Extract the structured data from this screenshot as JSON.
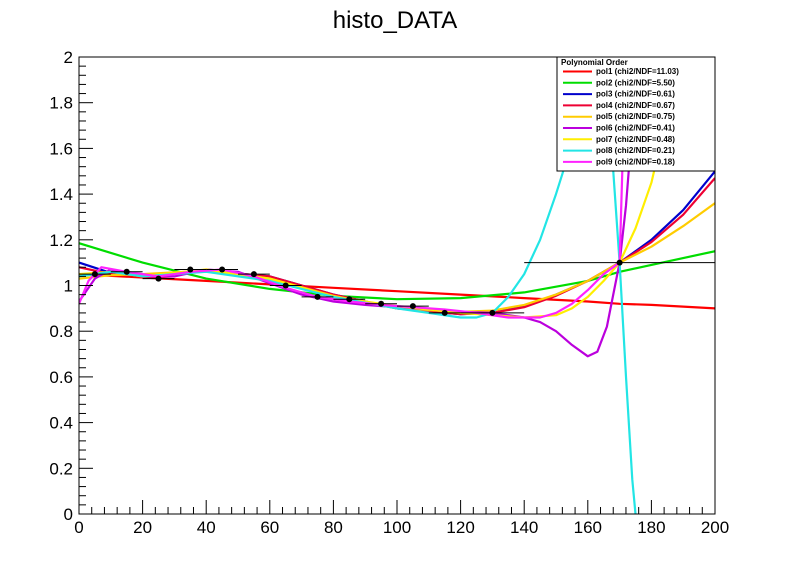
{
  "chart_data": {
    "type": "line",
    "title": "histo_DATA",
    "xlabel": "",
    "ylabel": "",
    "xlim": [
      0,
      200
    ],
    "ylim": [
      0,
      2
    ],
    "grid": false,
    "legend_placement": "top-right",
    "x_ticks": [
      "0",
      "20",
      "40",
      "60",
      "80",
      "100",
      "120",
      "140",
      "160",
      "180",
      "200"
    ],
    "y_ticks": [
      "0",
      "0.2",
      "0.4",
      "0.6",
      "0.8",
      "1",
      "1.2",
      "1.4",
      "1.6",
      "1.8",
      "2"
    ],
    "legend_title": "Polynomial Order",
    "data_points": [
      {
        "x": 5,
        "y": 1.05,
        "xlo": 0,
        "xhi": 10
      },
      {
        "x": 15,
        "y": 1.06,
        "xlo": 10,
        "xhi": 20
      },
      {
        "x": 25,
        "y": 1.03,
        "xlo": 20,
        "xhi": 30
      },
      {
        "x": 35,
        "y": 1.07,
        "xlo": 30,
        "xhi": 40
      },
      {
        "x": 45,
        "y": 1.07,
        "xlo": 40,
        "xhi": 50
      },
      {
        "x": 55,
        "y": 1.05,
        "xlo": 50,
        "xhi": 60
      },
      {
        "x": 65,
        "y": 1.0,
        "xlo": 60,
        "xhi": 70
      },
      {
        "x": 75,
        "y": 0.95,
        "xlo": 70,
        "xhi": 80
      },
      {
        "x": 85,
        "y": 0.94,
        "xlo": 80,
        "xhi": 90
      },
      {
        "x": 95,
        "y": 0.92,
        "xlo": 90,
        "xhi": 100
      },
      {
        "x": 105,
        "y": 0.91,
        "xlo": 100,
        "xhi": 110
      },
      {
        "x": 115,
        "y": 0.88,
        "xlo": 110,
        "xhi": 120
      },
      {
        "x": 130,
        "y": 0.88,
        "xlo": 120,
        "xhi": 140
      },
      {
        "x": 170,
        "y": 1.1,
        "xlo": 140,
        "xhi": 200
      }
    ],
    "series": [
      {
        "name": "pol1 (chi2/NDF=11.03)",
        "color": "#ff0000",
        "x": [
          0,
          20,
          40,
          60,
          80,
          100,
          120,
          140,
          160,
          170,
          180,
          200
        ],
        "y": [
          1.05,
          1.035,
          1.02,
          1.005,
          0.99,
          0.975,
          0.96,
          0.945,
          0.93,
          0.92,
          0.915,
          0.9
        ]
      },
      {
        "name": "pol2 (chi2/NDF=5.50)",
        "color": "#00dd00",
        "x": [
          0,
          20,
          40,
          60,
          80,
          100,
          120,
          140,
          160,
          170,
          180,
          200
        ],
        "y": [
          1.185,
          1.1,
          1.03,
          0.985,
          0.955,
          0.94,
          0.945,
          0.97,
          1.02,
          1.06,
          1.09,
          1.15
        ]
      },
      {
        "name": "pol3 (chi2/NDF=0.61)",
        "color": "#0000cc",
        "x": [
          0,
          10,
          20,
          40,
          60,
          80,
          100,
          120,
          130,
          140,
          150,
          160,
          170,
          180,
          190,
          200
        ],
        "y": [
          1.1,
          1.055,
          1.045,
          1.065,
          1.04,
          0.96,
          0.9,
          0.875,
          0.88,
          0.91,
          0.96,
          1.02,
          1.1,
          1.2,
          1.33,
          1.5
        ]
      },
      {
        "name": "pol4 (chi2/NDF=0.67)",
        "color": "#ee0033",
        "x": [
          0,
          10,
          20,
          40,
          60,
          80,
          100,
          120,
          130,
          140,
          150,
          160,
          170,
          180,
          190,
          200
        ],
        "y": [
          1.08,
          1.05,
          1.045,
          1.065,
          1.04,
          0.96,
          0.9,
          0.875,
          0.88,
          0.905,
          0.955,
          1.02,
          1.1,
          1.19,
          1.31,
          1.47
        ]
      },
      {
        "name": "pol5 (chi2/NDF=0.75)",
        "color": "#ffcc00",
        "x": [
          0,
          10,
          20,
          40,
          60,
          80,
          100,
          120,
          130,
          140,
          150,
          160,
          170,
          180,
          190,
          200
        ],
        "y": [
          1.03,
          1.045,
          1.05,
          1.065,
          1.03,
          0.955,
          0.9,
          0.885,
          0.89,
          0.915,
          0.96,
          1.02,
          1.1,
          1.17,
          1.26,
          1.36
        ]
      },
      {
        "name": "pol6 (chi2/NDF=0.41)",
        "color": "#bb00dd",
        "x": [
          0,
          5,
          10,
          20,
          30,
          40,
          50,
          60,
          70,
          80,
          90,
          100,
          110,
          120,
          130,
          140,
          145,
          150,
          155,
          160,
          163,
          166,
          170,
          172,
          174,
          176
        ],
        "y": [
          0.93,
          1.03,
          1.07,
          1.04,
          1.04,
          1.07,
          1.06,
          1.01,
          0.96,
          0.93,
          0.915,
          0.905,
          0.895,
          0.885,
          0.88,
          0.86,
          0.84,
          0.8,
          0.74,
          0.69,
          0.71,
          0.82,
          1.1,
          1.35,
          1.7,
          2.05
        ]
      },
      {
        "name": "pol7 (chi2/NDF=0.48)",
        "color": "#ffee00",
        "x": [
          0,
          10,
          20,
          40,
          60,
          80,
          100,
          120,
          130,
          140,
          150,
          155,
          160,
          165,
          170,
          175,
          180,
          185,
          190
        ],
        "y": [
          1.05,
          1.06,
          1.04,
          1.07,
          1.03,
          0.95,
          0.91,
          0.88,
          0.87,
          0.86,
          0.87,
          0.9,
          0.95,
          1.02,
          1.1,
          1.25,
          1.45,
          1.75,
          2.05
        ]
      },
      {
        "name": "pol8 (chi2/NDF=0.21)",
        "color": "#22e5e5",
        "x": [
          0,
          10,
          20,
          40,
          60,
          80,
          100,
          110,
          120,
          125,
          130,
          135,
          140,
          145,
          150,
          155,
          160,
          164,
          167,
          170,
          172,
          174,
          175
        ],
        "y": [
          1.04,
          1.06,
          1.04,
          1.06,
          1.02,
          0.95,
          0.9,
          0.88,
          0.86,
          0.86,
          0.88,
          0.95,
          1.05,
          1.2,
          1.4,
          1.62,
          1.85,
          1.95,
          1.7,
          1.1,
          0.6,
          0.15,
          0.0
        ]
      },
      {
        "name": "pol9 (chi2/NDF=0.18)",
        "color": "#ff22ff",
        "x": [
          0,
          3,
          7,
          15,
          25,
          35,
          45,
          55,
          65,
          75,
          85,
          95,
          105,
          115,
          125,
          135,
          145,
          150,
          155,
          160,
          165,
          168,
          170,
          172
        ],
        "y": [
          0.92,
          1.02,
          1.08,
          1.06,
          1.04,
          1.06,
          1.07,
          1.04,
          0.99,
          0.95,
          0.93,
          0.915,
          0.905,
          0.895,
          0.88,
          0.86,
          0.86,
          0.88,
          0.92,
          0.98,
          1.05,
          1.08,
          1.1,
          2.05
        ]
      }
    ]
  }
}
